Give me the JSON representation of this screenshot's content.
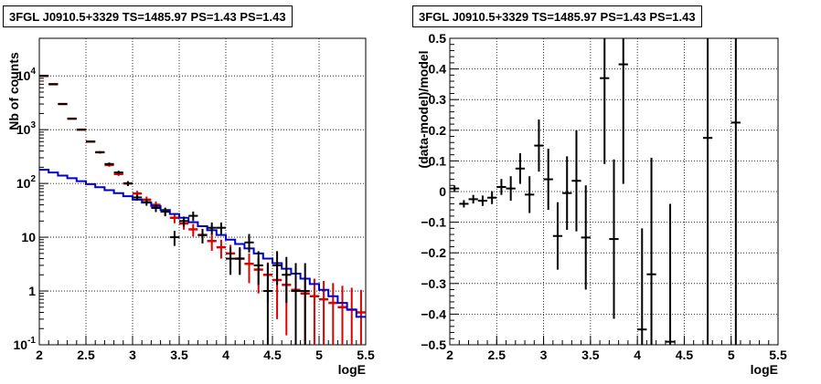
{
  "chart_data": [
    {
      "type": "scatter",
      "title": "3FGL J0910.5+3329 TS=1485.97 PS=1.43 PS=1.43",
      "xlabel": "logE",
      "ylabel": "Nb of counts",
      "xlim": [
        2,
        5.5
      ],
      "ylim": [
        0.1,
        50000
      ],
      "y_scale": "log",
      "grid": true,
      "x_ticks": [
        "2",
        "2.5",
        "3",
        "3.5",
        "4",
        "4.5",
        "5",
        "5.5"
      ],
      "y_ticks": [
        "10^-1",
        "1",
        "10",
        "10^2",
        "10^3",
        "10^4"
      ],
      "colors": {
        "data": "#000000",
        "model_total": "#dd0000",
        "model_source": "#0000cc"
      },
      "series": [
        {
          "key": "data",
          "x": [
            2.05,
            2.15,
            2.25,
            2.35,
            2.45,
            2.55,
            2.65,
            2.75,
            2.85,
            2.95,
            3.05,
            3.15,
            3.25,
            3.35,
            3.45,
            3.55,
            3.65,
            3.75,
            3.85,
            3.95,
            4.05,
            4.15,
            4.25,
            4.35,
            4.45,
            4.55,
            4.65,
            4.75,
            4.85
          ],
          "y": [
            10000,
            7000,
            3000,
            1600,
            1000,
            600,
            380,
            230,
            160,
            100,
            55,
            45,
            35,
            30,
            10,
            20,
            25,
            11,
            15,
            15,
            4,
            4,
            8,
            3,
            1,
            3,
            2,
            1,
            1
          ],
          "yerr_low": [
            100,
            84,
            55,
            40,
            32,
            25,
            19,
            15,
            12,
            10,
            7,
            6.5,
            5.6,
            5.2,
            3.1,
            4.2,
            5,
            3.3,
            3.8,
            3.8,
            2,
            2,
            2.8,
            1.7,
            0.9,
            1.7,
            1.4,
            0.9,
            0.9
          ],
          "yerr_high": [
            100,
            84,
            55,
            40,
            32,
            25,
            19,
            15,
            12,
            10,
            7,
            6.5,
            5.6,
            5.2,
            3.1,
            4.2,
            5,
            3.3,
            3.8,
            3.8,
            2.5,
            2.5,
            3.5,
            2.5,
            2.3,
            2.5,
            2.3,
            2.3,
            2.3
          ]
        },
        {
          "key": "model_total",
          "x": [
            2.05,
            2.15,
            2.25,
            2.35,
            2.45,
            2.55,
            2.65,
            2.75,
            2.85,
            2.95,
            3.05,
            3.15,
            3.25,
            3.35,
            3.45,
            3.55,
            3.65,
            3.75,
            3.85,
            3.95,
            4.05,
            4.15,
            4.25,
            4.35,
            4.45,
            4.55,
            4.65,
            4.75,
            4.85,
            4.95,
            5.05,
            5.15,
            5.25,
            5.35,
            5.45
          ],
          "y": [
            10000,
            7000,
            3000,
            1600,
            1000,
            600,
            380,
            220,
            150,
            100,
            65,
            50,
            40,
            30,
            23,
            18,
            14,
            11,
            8.5,
            6.5,
            5,
            4,
            3.2,
            2.5,
            2,
            1.6,
            1.3,
            1.05,
            0.9,
            0.8,
            0.7,
            0.6,
            0.5,
            0.45,
            0.4
          ],
          "yerr": [
            100,
            84,
            55,
            40,
            32,
            25,
            19,
            15,
            12,
            10,
            8,
            7,
            6.3,
            5.5,
            4.8,
            4.2,
            3.7,
            3.3,
            2.9,
            2.5,
            2.2,
            2,
            1.8,
            1.6,
            1.4,
            1.3,
            1.15,
            1.03,
            0.95,
            0.9,
            0.85,
            0.8,
            0.75,
            0.7,
            0.65
          ]
        },
        {
          "key": "model_source",
          "x": [
            2.05,
            2.15,
            2.25,
            2.35,
            2.45,
            2.55,
            2.65,
            2.75,
            2.85,
            2.95,
            3.05,
            3.15,
            3.25,
            3.35,
            3.45,
            3.55,
            3.65,
            3.75,
            3.85,
            3.95,
            4.05,
            4.15,
            4.25,
            4.35,
            4.45,
            4.55,
            4.65,
            4.75,
            4.85,
            4.95,
            5.05,
            5.15,
            5.25,
            5.35,
            5.45
          ],
          "y": [
            180,
            160,
            140,
            125,
            110,
            97,
            85,
            75,
            66,
            58,
            50,
            44,
            38,
            32,
            27,
            23,
            19,
            16,
            13.5,
            11,
            9,
            7.5,
            6.2,
            5,
            4,
            3.3,
            2.6,
            2.1,
            1.7,
            1.35,
            1.05,
            0.8,
            0.6,
            0.45,
            0.33
          ]
        }
      ]
    },
    {
      "type": "scatter",
      "title": "3FGL J0910.5+3329 TS=1485.97 PS=1.43 PS=1.43",
      "xlabel": "logE",
      "ylabel": "(data-model)/model",
      "xlim": [
        2,
        5.5
      ],
      "ylim": [
        -0.5,
        0.5
      ],
      "grid": true,
      "x_ticks": [
        "2",
        "2.5",
        "3",
        "3.5",
        "4",
        "4.5",
        "5",
        "5.5"
      ],
      "y_ticks": [
        "−0.5",
        "−0.4",
        "−0.3",
        "−0.2",
        "−0.1",
        "0",
        "0.1",
        "0.2",
        "0.3",
        "0.4",
        "0.5"
      ],
      "series": [
        {
          "key": "residuals",
          "x": [
            2.05,
            2.15,
            2.25,
            2.35,
            2.45,
            2.55,
            2.65,
            2.75,
            2.85,
            2.95,
            3.05,
            3.15,
            3.25,
            3.35,
            3.45,
            3.65,
            3.75,
            3.85,
            4.05,
            4.15,
            4.35,
            4.75,
            5.05
          ],
          "y": [
            0.01,
            -0.04,
            -0.025,
            -0.03,
            -0.02,
            0.015,
            0.01,
            0.075,
            -0.01,
            0.15,
            0.04,
            -0.145,
            -0.005,
            0.035,
            -0.15,
            0.37,
            -0.155,
            0.415,
            -0.45,
            -0.27,
            -0.49,
            0.175,
            0.225
          ],
          "yerr": [
            0.01,
            0.012,
            0.014,
            0.017,
            0.021,
            0.026,
            0.04,
            0.05,
            0.06,
            0.085,
            0.1,
            0.11,
            0.12,
            0.165,
            0.17,
            0.28,
            0.26,
            0.39,
            0.33,
            0.38,
            0.45,
            0.7,
            0.8
          ]
        }
      ]
    }
  ]
}
